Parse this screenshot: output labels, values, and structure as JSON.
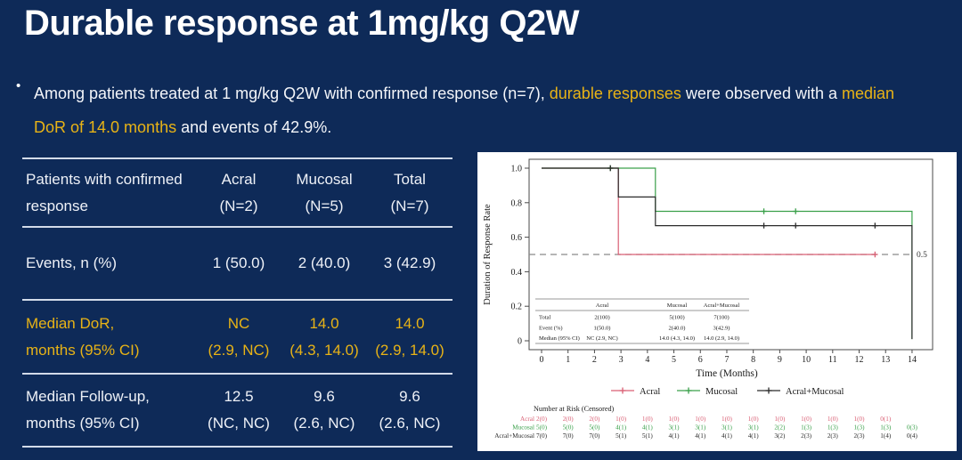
{
  "slide": {
    "title": "Durable response at 1mg/kg Q2W",
    "bullet": {
      "lines": [
        [
          {
            "text": "Among patients treated at 1 mg/kg Q2W with confirmed response (n=7), ",
            "em": false
          },
          {
            "text": "durable responses",
            "em": true
          },
          {
            "text": " were observed with a ",
            "em": false
          },
          {
            "text": "median",
            "em": true
          }
        ],
        [
          {
            "text": "DoR of 14.0 months",
            "em": true
          },
          {
            "text": " and events of 42.9%.",
            "em": false
          }
        ]
      ]
    }
  },
  "summary_table": {
    "header": {
      "label_lines": [
        "Patients with confirmed",
        "response"
      ],
      "columns": [
        {
          "name": "Acral",
          "n": "(N=2)"
        },
        {
          "name": "Mucosal",
          "n": "(N=5)"
        },
        {
          "name": "Total",
          "n": "(N=7)"
        }
      ]
    },
    "rows": [
      {
        "label_lines": [
          "Events, n (%)"
        ],
        "cells": [
          [
            "1 (50.0)"
          ],
          [
            "2 (40.0)"
          ],
          [
            "3 (42.9)"
          ]
        ],
        "highlight": false
      },
      {
        "label_lines": [
          "Median DoR,",
          "months (95% CI)"
        ],
        "cells": [
          [
            "NC",
            "(2.9, NC)"
          ],
          [
            "14.0",
            "(4.3, 14.0)"
          ],
          [
            "14.0",
            "(2.9, 14.0)"
          ]
        ],
        "highlight": true
      },
      {
        "label_lines": [
          "Median Follow-up,",
          "months (95% CI)"
        ],
        "cells": [
          [
            "12.5",
            "(NC, NC)"
          ],
          [
            "9.6",
            "(2.6, NC)"
          ],
          [
            "9.6",
            "(2.6, NC)"
          ]
        ],
        "highlight": false
      }
    ]
  },
  "chart_data": {
    "type": "line",
    "subtype": "kaplan-meier-step",
    "title": "",
    "xlabel": "Time (Months)",
    "ylabel": "Duration of Response Rate",
    "xlim": [
      0,
      14
    ],
    "ylim": [
      0,
      1.0
    ],
    "xticks": [
      0,
      1,
      2,
      3,
      4,
      5,
      6,
      7,
      8,
      9,
      10,
      11,
      12,
      13,
      14
    ],
    "yticks": [
      0,
      0.2,
      0.4,
      0.6,
      0.8,
      1.0
    ],
    "ytick_labels": [
      "0",
      "0.2",
      "0.4",
      "0.6",
      "0.8",
      "1.0"
    ],
    "grid": false,
    "legend_position": "bottom",
    "reference_line": {
      "y": 0.5,
      "label": "0.5",
      "style": "dashed"
    },
    "series": [
      {
        "name": "Acral",
        "color": "#d95f74",
        "points": [
          [
            0,
            1.0
          ],
          [
            2.9,
            1.0
          ],
          [
            2.9,
            0.5
          ],
          [
            12.6,
            0.5
          ]
        ],
        "censored": [
          [
            12.6,
            0.5
          ]
        ]
      },
      {
        "name": "Mucosal",
        "color": "#3aa04a",
        "points": [
          [
            0,
            1.0
          ],
          [
            4.3,
            1.0
          ],
          [
            4.3,
            0.75
          ],
          [
            14,
            0.75
          ],
          [
            14,
            0.01
          ]
        ],
        "censored": [
          [
            2.6,
            1.0
          ],
          [
            8.4,
            0.75
          ],
          [
            9.6,
            0.75
          ]
        ]
      },
      {
        "name": "Acral+Mucosal",
        "color": "#2b2b2b",
        "points": [
          [
            0,
            1.0
          ],
          [
            2.9,
            1.0
          ],
          [
            2.9,
            0.833
          ],
          [
            4.3,
            0.833
          ],
          [
            4.3,
            0.667
          ],
          [
            14,
            0.667
          ],
          [
            14,
            0.01
          ]
        ],
        "censored": [
          [
            2.6,
            1.0
          ],
          [
            8.4,
            0.667
          ],
          [
            9.6,
            0.667
          ],
          [
            12.6,
            0.667
          ]
        ]
      }
    ],
    "inset_table": {
      "columns": [
        "",
        "Acral",
        "Mucosal",
        "Acral+Mucosal"
      ],
      "rows": [
        [
          "Total",
          "2(100)",
          "5(100)",
          "7(100)"
        ],
        [
          "Event (%)",
          "1(50.0)",
          "2(40.0)",
          "3(42.9)"
        ],
        [
          "Median (95% CI)",
          "NC (2.9, NC)",
          "14.0 (4.3, 14.0)",
          "14.0 (2.9, 14.0)"
        ]
      ]
    },
    "risk_table": {
      "title": "Number at Risk (Censored)",
      "rows": [
        {
          "name": "Acral",
          "values": [
            "2(0)",
            "2(0)",
            "2(0)",
            "1(0)",
            "1(0)",
            "1(0)",
            "1(0)",
            "1(0)",
            "1(0)",
            "1(0)",
            "1(0)",
            "1(0)",
            "1(0)",
            "0(1)"
          ]
        },
        {
          "name": "Mucosal",
          "values": [
            "5(0)",
            "5(0)",
            "5(0)",
            "4(1)",
            "4(1)",
            "3(1)",
            "3(1)",
            "3(1)",
            "3(1)",
            "2(2)",
            "1(3)",
            "1(3)",
            "1(3)",
            "1(3)",
            "0(3)"
          ]
        },
        {
          "name": "Acral+Mucosal",
          "values": [
            "7(0)",
            "7(0)",
            "7(0)",
            "5(1)",
            "5(1)",
            "4(1)",
            "4(1)",
            "4(1)",
            "4(1)",
            "3(2)",
            "2(3)",
            "2(3)",
            "2(3)",
            "1(4)",
            "0(4)"
          ]
        }
      ]
    }
  },
  "colors": {
    "background": "#0e2a58",
    "accent": "#e8b316",
    "text": "#ffffff",
    "table_rule": "#d3dbe9",
    "chart_frame": "#4a4a4a",
    "chart_text": "#1a1a1a",
    "reference_dash": "#8a8a8a"
  }
}
